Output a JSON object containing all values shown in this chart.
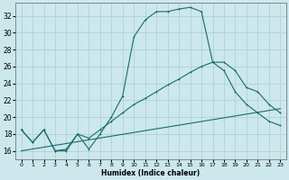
{
  "xlabel": "Humidex (Indice chaleur)",
  "ylabel": "",
  "bg_color": "#cce8ec",
  "grid_color": "#aaccd4",
  "line_color": "#1a6b6b",
  "xlim": [
    -0.5,
    23.5
  ],
  "ylim": [
    15.0,
    33.5
  ],
  "yticks": [
    16,
    18,
    20,
    22,
    24,
    26,
    28,
    30,
    32
  ],
  "xticks": [
    0,
    1,
    2,
    3,
    4,
    5,
    6,
    7,
    8,
    9,
    10,
    11,
    12,
    13,
    14,
    15,
    16,
    17,
    18,
    19,
    20,
    21,
    22,
    23
  ],
  "series1_x": [
    0,
    1,
    2,
    3,
    4,
    5,
    6,
    7,
    8,
    9,
    10,
    11,
    12,
    13,
    14,
    15,
    16,
    17,
    18,
    19,
    20,
    21,
    22,
    23
  ],
  "series1_y": [
    18.5,
    17.0,
    18.5,
    16.0,
    16.0,
    18.0,
    16.2,
    18.0,
    20.0,
    22.5,
    29.5,
    31.5,
    32.5,
    32.5,
    32.8,
    33.0,
    32.5,
    26.5,
    26.5,
    25.5,
    23.5,
    23.0,
    21.5,
    20.5
  ],
  "series2_x": [
    0,
    1,
    2,
    3,
    4,
    5,
    6,
    7,
    8,
    9,
    10,
    11,
    12,
    13,
    14,
    15,
    16,
    17,
    18,
    19,
    20,
    21,
    22,
    23
  ],
  "series2_y": [
    18.5,
    17.0,
    18.5,
    16.0,
    16.2,
    18.0,
    17.5,
    18.5,
    19.5,
    20.5,
    21.5,
    22.2,
    23.0,
    23.8,
    24.5,
    25.3,
    26.0,
    26.5,
    25.5,
    23.0,
    21.5,
    20.5,
    19.5,
    19.0
  ],
  "series3_x": [
    0,
    23
  ],
  "series3_y": [
    16.0,
    21.0
  ]
}
